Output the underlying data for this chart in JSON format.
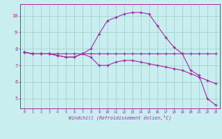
{
  "xlabel": "Windchill (Refroidissement éolien,°C)",
  "bg_color": "#c8eef0",
  "line_color": "#aa22aa",
  "grid_color": "#99ccbb",
  "x_hours": [
    0,
    1,
    2,
    3,
    4,
    5,
    6,
    7,
    8,
    9,
    10,
    11,
    12,
    13,
    14,
    15,
    16,
    17,
    18,
    19,
    20,
    21,
    22,
    23
  ],
  "series1": [
    7.8,
    7.7,
    7.7,
    7.7,
    7.6,
    7.5,
    7.5,
    7.7,
    8.0,
    8.9,
    9.7,
    9.9,
    10.1,
    10.2,
    10.2,
    10.1,
    9.4,
    8.7,
    8.1,
    7.7,
    6.7,
    6.4,
    5.0,
    4.6
  ],
  "series2": [
    7.8,
    7.7,
    7.7,
    7.7,
    7.6,
    7.5,
    7.5,
    7.7,
    7.5,
    7.0,
    7.0,
    7.2,
    7.3,
    7.3,
    7.2,
    7.1,
    7.0,
    6.9,
    6.8,
    6.7,
    6.5,
    6.3,
    6.1,
    5.9
  ],
  "series3": [
    7.8,
    7.7,
    7.7,
    7.7,
    7.7,
    7.7,
    7.7,
    7.7,
    7.7,
    7.7,
    7.7,
    7.7,
    7.7,
    7.7,
    7.7,
    7.7,
    7.7,
    7.7,
    7.7,
    7.7,
    7.7,
    7.7,
    7.7,
    7.7
  ],
  "ylim": [
    4.4,
    10.7
  ],
  "xlim": [
    -0.5,
    23.5
  ],
  "yticks": [
    5,
    6,
    7,
    8,
    9,
    10
  ],
  "xticks": [
    0,
    1,
    2,
    3,
    4,
    5,
    6,
    7,
    8,
    9,
    10,
    11,
    12,
    13,
    14,
    15,
    16,
    17,
    18,
    19,
    20,
    21,
    22,
    23
  ],
  "figsize": [
    3.2,
    2.0
  ],
  "dpi": 100
}
